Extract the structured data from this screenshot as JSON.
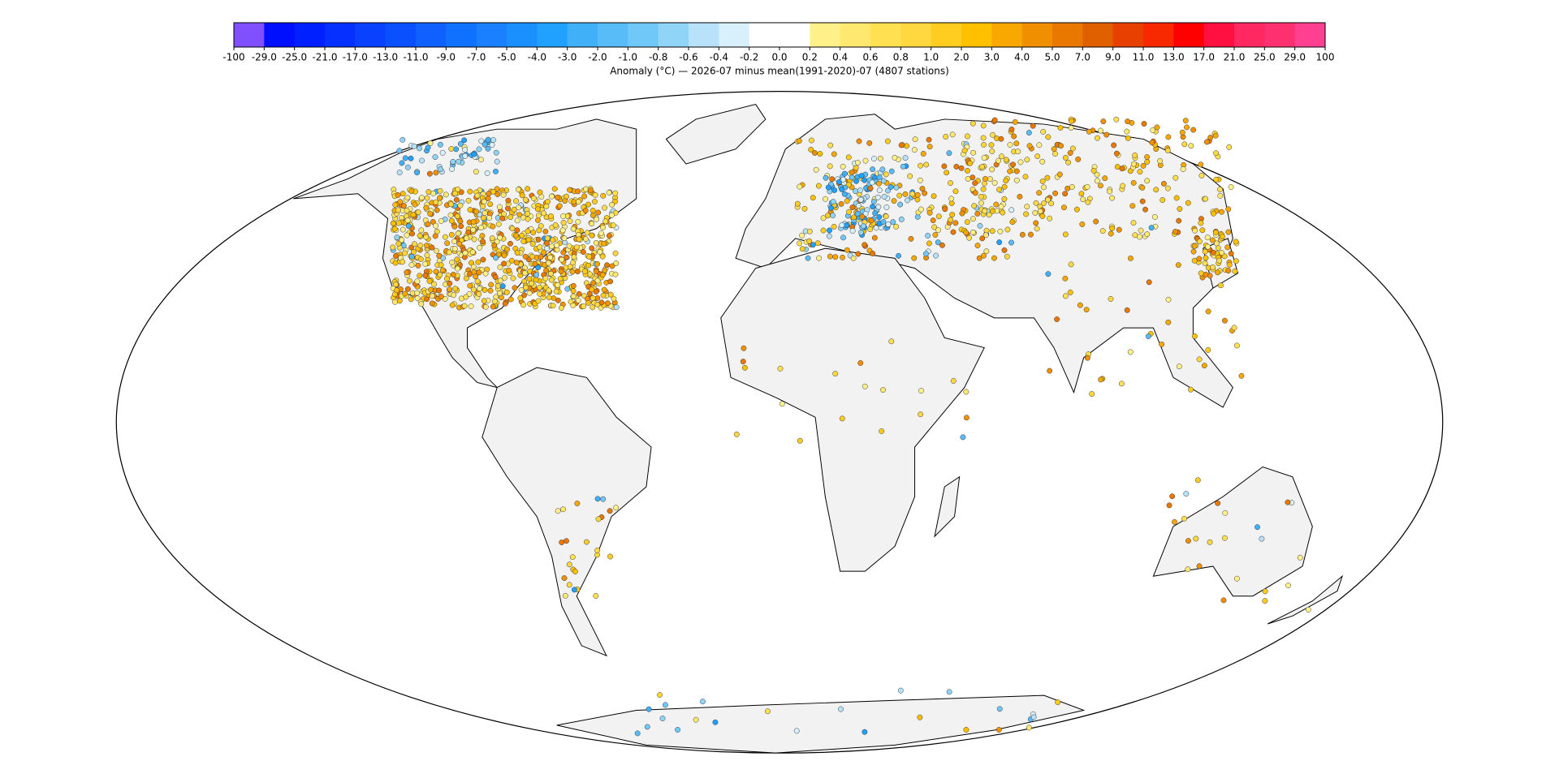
{
  "colorbar": {
    "ticks": [
      -100,
      {
        "value": -29,
        "label": "-29.0"
      },
      {
        "value": -25,
        "label": "-25.0"
      },
      {
        "value": -21,
        "label": "-21.0"
      },
      {
        "value": -17,
        "label": "-17.0"
      },
      {
        "value": -13,
        "label": "-13.0"
      },
      {
        "value": -11,
        "label": "-11.0"
      },
      {
        "value": -9,
        "label": "-9.0"
      },
      {
        "value": -7,
        "label": "-7.0"
      },
      {
        "value": -5,
        "label": "-5.0"
      },
      {
        "value": -4,
        "label": "-4.0"
      },
      {
        "value": -3,
        "label": "-3.0"
      },
      {
        "value": -2,
        "label": "-2.0"
      },
      {
        "value": -1,
        "label": "-1.0"
      },
      -0.8,
      -0.6,
      -0.4,
      -0.2,
      {
        "value": 0,
        "label": "0.0"
      },
      0.2,
      0.4,
      0.6,
      0.8,
      {
        "value": 1,
        "label": "1.0"
      },
      {
        "value": 2,
        "label": "2.0"
      },
      {
        "value": 3,
        "label": "3.0"
      },
      {
        "value": 4,
        "label": "4.0"
      },
      {
        "value": 5,
        "label": "5.0"
      },
      {
        "value": 7,
        "label": "7.0"
      },
      {
        "value": 9,
        "label": "9.0"
      },
      {
        "value": 11,
        "label": "11.0"
      },
      {
        "value": 13,
        "label": "13.0"
      },
      {
        "value": 17,
        "label": "17.0"
      },
      {
        "value": 21,
        "label": "21.0"
      },
      {
        "value": 25,
        "label": "25.0"
      },
      {
        "value": 29,
        "label": "29.0"
      },
      100
    ],
    "colors": [
      "#8050ff",
      "#0010ff",
      "#0020ff",
      "#0530ff",
      "#0a40ff",
      "#0a50ff",
      "#1060ff",
      "#1070ff",
      "#1a80ff",
      "#1a90ff",
      "#20a0ff",
      "#40b0f8",
      "#58bcf8",
      "#70c8f8",
      "#90d4f8",
      "#b8e2fa",
      "#d8f0fc",
      "#ffffff",
      "#ffffff",
      "#fff08a",
      "#ffe870",
      "#ffe050",
      "#ffd840",
      "#ffcc20",
      "#ffc000",
      "#f8a800",
      "#f09000",
      "#e87800",
      "#e06000",
      "#e84000",
      "#f82800",
      "#ff0000",
      "#ff1040",
      "#ff2860",
      "#ff3070",
      "#ff4090"
    ]
  },
  "caption": "Anomaly (°C) — 2026-07 minus mean(1991-2020)-07 (4807 stations)"
}
